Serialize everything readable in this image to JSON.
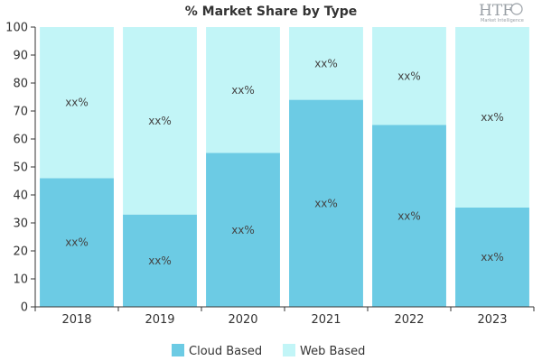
{
  "chart_data": {
    "type": "bar",
    "stacked": true,
    "title": "% Market Share by Type",
    "categories": [
      "2018",
      "2019",
      "2020",
      "2021",
      "2022",
      "2023"
    ],
    "series": [
      {
        "name": "Cloud Based",
        "color": "#6ccbe4",
        "values": [
          46,
          33,
          55,
          74,
          65,
          35.5
        ],
        "labels": [
          "xx%",
          "xx%",
          "xx%",
          "xx%",
          "xx%",
          "xx%"
        ]
      },
      {
        "name": "Web Based",
        "color": "#c2f5f7",
        "values": [
          54,
          67,
          45,
          26,
          35,
          64.5
        ],
        "labels": [
          "xx%",
          "xx%",
          "xx%",
          "xx%",
          "xx%",
          "xx%"
        ]
      }
    ],
    "ylim": [
      0,
      100
    ],
    "yticks": [
      0,
      10,
      20,
      30,
      40,
      50,
      60,
      70,
      80,
      90,
      100
    ],
    "grid": false,
    "legend_position": "bottom-center"
  },
  "logo": {
    "text": "HTF",
    "subtext": "Market Intelligence"
  }
}
